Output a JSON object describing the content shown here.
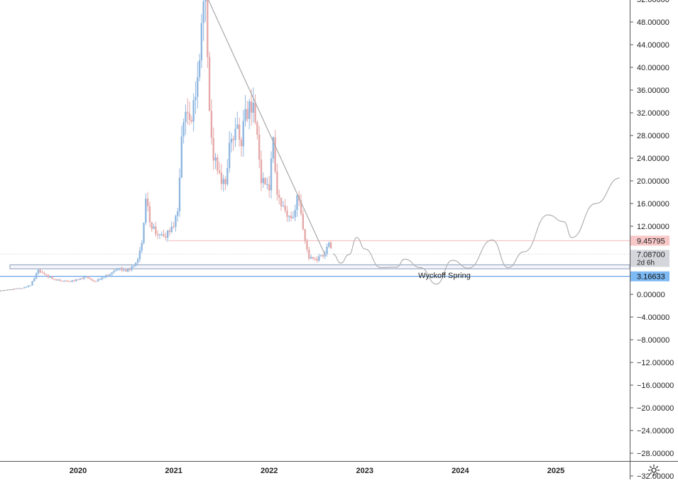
{
  "chart_data": {
    "type": "candlestick",
    "y_axis": {
      "ticks": [
        "52.00000",
        "48.00000",
        "44.00000",
        "40.00000",
        "36.00000",
        "32.00000",
        "28.00000",
        "24.00000",
        "20.00000",
        "16.00000",
        "12.00000",
        "0.00000",
        "−4.00000",
        "−8.00000",
        "−12.00000",
        "−16.00000",
        "−20.00000",
        "−24.00000",
        "−28.00000",
        "−32.00000"
      ],
      "range": [
        -34,
        56
      ]
    },
    "x_axis": {
      "ticks": [
        "2020",
        "2021",
        "2022",
        "2023",
        "2024",
        "2025"
      ]
    },
    "price_labels": [
      {
        "text": "9.45795",
        "value": 9.45795,
        "color": "#f8c8c8",
        "text_color": "#222222"
      },
      {
        "text": "7.08700",
        "value": 7.087,
        "color": "#d5d6dc",
        "text_color": "#222222"
      },
      {
        "text": "3.16633",
        "value": 3.16633,
        "color": "#7db9f3",
        "text_color": "#111111"
      }
    ],
    "countdown": "2d 6h",
    "annotations": [
      {
        "text": "Wyckoff Spring"
      }
    ],
    "series": [
      {
        "name": "price",
        "style": "candles",
        "up_color": "#8fb7e0",
        "down_color": "#e6a8a8",
        "points": [
          [
            "2019-05",
            1.0
          ],
          [
            "2019-06",
            1.1
          ],
          [
            "2019-07",
            1.6
          ],
          [
            "2019-08",
            4.2
          ],
          [
            "2019-09",
            3.3
          ],
          [
            "2019-10",
            2.6
          ],
          [
            "2019-11",
            2.4
          ],
          [
            "2019-12",
            2.3
          ],
          [
            "2020-01",
            2.6
          ],
          [
            "2020-02",
            3.1
          ],
          [
            "2020-03",
            2.2
          ],
          [
            "2020-04",
            2.9
          ],
          [
            "2020-05",
            3.6
          ],
          [
            "2020-06",
            4.6
          ],
          [
            "2020-07",
            4.1
          ],
          [
            "2020-08",
            4.9
          ],
          [
            "2020-08b",
            6.4
          ],
          [
            "2020-09",
            8.7
          ],
          [
            "2020-09b",
            17.5
          ],
          [
            "2020-10",
            12.4
          ],
          [
            "2020-11",
            10.6
          ],
          [
            "2020-12",
            10.4
          ],
          [
            "2021-01",
            12.2
          ],
          [
            "2021-01b",
            14.5
          ],
          [
            "2021-02",
            27.5
          ],
          [
            "2021-02b",
            33.1
          ],
          [
            "2021-03",
            29.6
          ],
          [
            "2021-04",
            37.2
          ],
          [
            "2021-04b",
            48.4
          ],
          [
            "2021-05",
            52.5
          ],
          [
            "2021-05b",
            31.5
          ],
          [
            "2021-06",
            24.5
          ],
          [
            "2021-07",
            20.1
          ],
          [
            "2021-07b",
            19.1
          ],
          [
            "2021-08",
            26.6
          ],
          [
            "2021-09",
            28.9
          ],
          [
            "2021-09b",
            27.2
          ],
          [
            "2021-10",
            31.6
          ],
          [
            "2021-11",
            33.8
          ],
          [
            "2021-11b",
            27.6
          ],
          [
            "2021-12",
            20.3
          ],
          [
            "2022-01",
            19.0
          ],
          [
            "2022-01b",
            27.1
          ],
          [
            "2022-02",
            17.6
          ],
          [
            "2022-03",
            14.3
          ],
          [
            "2022-04",
            13.1
          ],
          [
            "2022-04b",
            17.9
          ],
          [
            "2022-05",
            14.1
          ],
          [
            "2022-05b",
            9.3
          ],
          [
            "2022-06",
            6.5
          ],
          [
            "2022-07",
            6.2
          ],
          [
            "2022-07b",
            6.7
          ],
          [
            "2022-08",
            7.2
          ],
          [
            "2022-08b",
            9.2
          ],
          [
            "2022-09",
            7.09
          ]
        ]
      },
      {
        "name": "projection",
        "style": "line",
        "color": "#b0b0b4",
        "points": [
          [
            "2022-09",
            7.1
          ],
          [
            "2022-10",
            5.5
          ],
          [
            "2022-11",
            7.0
          ],
          [
            "2022-12",
            10.0
          ],
          [
            "2023-01",
            8.0
          ],
          [
            "2023-03",
            4.7
          ],
          [
            "2023-05",
            4.8
          ],
          [
            "2023-06",
            6.2
          ],
          [
            "2023-08",
            4.7
          ],
          [
            "2023-10",
            1.8
          ],
          [
            "2023-12",
            6.0
          ],
          [
            "2024-02",
            4.6
          ],
          [
            "2024-05",
            9.6
          ],
          [
            "2024-07",
            4.7
          ],
          [
            "2024-09",
            7.5
          ],
          [
            "2024-12",
            14.0
          ],
          [
            "2025-02",
            12.8
          ],
          [
            "2025-03",
            10.0
          ],
          [
            "2025-06",
            16.0
          ],
          [
            "2025-09",
            20.5
          ]
        ]
      },
      {
        "name": "trendline",
        "style": "line",
        "color": "#a8a8ac",
        "points": [
          [
            "2021-05",
            53.0
          ],
          [
            "2022-08",
            7.0
          ]
        ]
      }
    ],
    "grid": false
  },
  "icons": {
    "settings": "gear-icon"
  }
}
